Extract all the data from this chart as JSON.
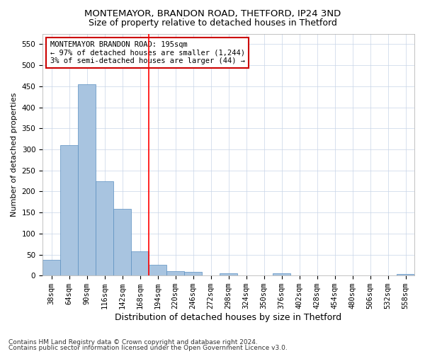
{
  "title1": "MONTEMAYOR, BRANDON ROAD, THETFORD, IP24 3ND",
  "title2": "Size of property relative to detached houses in Thetford",
  "xlabel": "Distribution of detached houses by size in Thetford",
  "ylabel": "Number of detached properties",
  "footnote1": "Contains HM Land Registry data © Crown copyright and database right 2024.",
  "footnote2": "Contains public sector information licensed under the Open Government Licence v3.0.",
  "annotation_line1": "MONTEMAYOR BRANDON ROAD: 195sqm",
  "annotation_line2": "← 97% of detached houses are smaller (1,244)",
  "annotation_line3": "3% of semi-detached houses are larger (44) →",
  "bar_labels": [
    "38sqm",
    "64sqm",
    "90sqm",
    "116sqm",
    "142sqm",
    "168sqm",
    "194sqm",
    "220sqm",
    "246sqm",
    "272sqm",
    "298sqm",
    "324sqm",
    "350sqm",
    "376sqm",
    "402sqm",
    "428sqm",
    "454sqm",
    "480sqm",
    "506sqm",
    "532sqm",
    "558sqm"
  ],
  "bar_values": [
    38,
    310,
    455,
    225,
    158,
    58,
    25,
    10,
    8,
    0,
    6,
    0,
    0,
    5,
    0,
    0,
    0,
    0,
    0,
    0,
    4
  ],
  "bar_color": "#a8c4e0",
  "bar_edge_color": "#5a8fc0",
  "ref_bar_index": 6,
  "ylim": [
    0,
    575
  ],
  "yticks": [
    0,
    50,
    100,
    150,
    200,
    250,
    300,
    350,
    400,
    450,
    500,
    550
  ],
  "annotation_box_color": "#cc0000",
  "background_color": "#ffffff",
  "grid_color": "#c8d4e8",
  "title1_fontsize": 9.5,
  "title2_fontsize": 9,
  "xlabel_fontsize": 9,
  "ylabel_fontsize": 8,
  "tick_fontsize": 7.5,
  "annotation_fontsize": 7.5,
  "footnote_fontsize": 6.5
}
